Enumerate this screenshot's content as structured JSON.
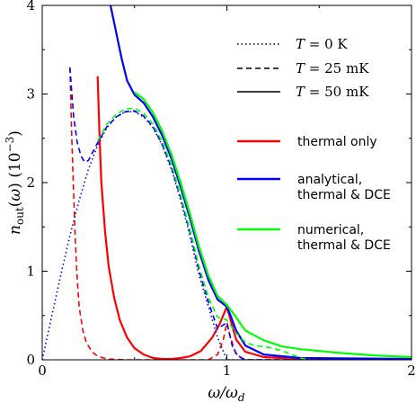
{
  "chart_data": {
    "type": "line",
    "title": "",
    "xlabel": "ω/ω_d",
    "ylabel": "n_out(ω)   (10⁻³)",
    "xlim": [
      0,
      2
    ],
    "ylim": [
      0,
      4
    ],
    "x_ticks": [
      "0",
      "1",
      "2"
    ],
    "y_ticks": [
      "0",
      "1",
      "2",
      "3",
      "4"
    ],
    "grid": false,
    "legend_position": "top-right",
    "legend": {
      "linestyles": [
        {
          "style": "dotted",
          "label": "T = 0 K"
        },
        {
          "style": "dashed",
          "label": "T = 25 mK"
        },
        {
          "style": "solid",
          "label": "T = 50 mK"
        }
      ],
      "colors": [
        {
          "color": "#ff0000",
          "label": "thermal only"
        },
        {
          "color": "#0000ff",
          "label": "analytical, thermal & DCE"
        },
        {
          "color": "#00ff00",
          "label": "numerical, thermal & DCE"
        }
      ]
    },
    "series": [
      {
        "name": "thermal only, T = 25 mK",
        "color": "#ff0000",
        "style": "dashed",
        "points": [
          [
            0.15,
            3.3
          ],
          [
            0.16,
            2.5
          ],
          [
            0.17,
            1.9
          ],
          [
            0.18,
            1.3
          ],
          [
            0.19,
            0.9
          ],
          [
            0.2,
            0.6
          ],
          [
            0.22,
            0.33
          ],
          [
            0.24,
            0.19
          ],
          [
            0.27,
            0.09
          ],
          [
            0.3,
            0.04
          ],
          [
            0.35,
            0.01
          ],
          [
            0.45,
            0.0
          ],
          [
            0.9,
            0.0
          ],
          [
            0.95,
            0.06
          ],
          [
            0.98,
            0.22
          ],
          [
            1.0,
            0.42
          ],
          [
            1.02,
            0.25
          ],
          [
            1.05,
            0.06
          ],
          [
            1.1,
            0.0
          ],
          [
            2.0,
            0.0
          ]
        ]
      },
      {
        "name": "thermal only, T = 50 mK",
        "color": "#ff0000",
        "style": "solid",
        "points": [
          [
            0.3,
            3.2
          ],
          [
            0.31,
            2.55
          ],
          [
            0.32,
            2.0
          ],
          [
            0.34,
            1.45
          ],
          [
            0.36,
            1.05
          ],
          [
            0.39,
            0.7
          ],
          [
            0.42,
            0.45
          ],
          [
            0.46,
            0.25
          ],
          [
            0.5,
            0.13
          ],
          [
            0.55,
            0.06
          ],
          [
            0.6,
            0.02
          ],
          [
            0.65,
            0.01
          ],
          [
            0.7,
            0.01
          ],
          [
            0.75,
            0.02
          ],
          [
            0.8,
            0.04
          ],
          [
            0.86,
            0.1
          ],
          [
            0.92,
            0.25
          ],
          [
            0.96,
            0.4
          ],
          [
            1.0,
            0.6
          ],
          [
            1.02,
            0.45
          ],
          [
            1.05,
            0.23
          ],
          [
            1.1,
            0.09
          ],
          [
            1.2,
            0.03
          ],
          [
            1.4,
            0.01
          ],
          [
            2.0,
            0.0
          ]
        ]
      },
      {
        "name": "analytical, thermal & DCE, T = 0 K",
        "color": "#0000ff",
        "style": "dotted",
        "points": [
          [
            0.0,
            0.0
          ],
          [
            0.05,
            0.48
          ],
          [
            0.1,
            0.95
          ],
          [
            0.15,
            1.4
          ],
          [
            0.2,
            1.8
          ],
          [
            0.25,
            2.15
          ],
          [
            0.3,
            2.42
          ],
          [
            0.35,
            2.62
          ],
          [
            0.4,
            2.74
          ],
          [
            0.45,
            2.8
          ],
          [
            0.5,
            2.8
          ],
          [
            0.55,
            2.74
          ],
          [
            0.6,
            2.62
          ],
          [
            0.65,
            2.42
          ],
          [
            0.7,
            2.15
          ],
          [
            0.75,
            1.8
          ],
          [
            0.8,
            1.4
          ],
          [
            0.85,
            0.95
          ],
          [
            0.9,
            0.6
          ],
          [
            0.95,
            0.25
          ],
          [
            1.0,
            0.0
          ],
          [
            2.0,
            0.0
          ]
        ]
      },
      {
        "name": "analytical, thermal & DCE, T = 25 mK",
        "color": "#0000ff",
        "style": "dashed",
        "points": [
          [
            0.15,
            3.3
          ],
          [
            0.17,
            2.75
          ],
          [
            0.19,
            2.45
          ],
          [
            0.21,
            2.3
          ],
          [
            0.23,
            2.23
          ],
          [
            0.25,
            2.25
          ],
          [
            0.3,
            2.45
          ],
          [
            0.35,
            2.63
          ],
          [
            0.4,
            2.74
          ],
          [
            0.45,
            2.8
          ],
          [
            0.5,
            2.81
          ],
          [
            0.55,
            2.75
          ],
          [
            0.6,
            2.63
          ],
          [
            0.65,
            2.43
          ],
          [
            0.7,
            2.17
          ],
          [
            0.75,
            1.83
          ],
          [
            0.8,
            1.44
          ],
          [
            0.85,
            1.0
          ],
          [
            0.9,
            0.65
          ],
          [
            0.95,
            0.35
          ],
          [
            1.0,
            0.42
          ],
          [
            1.03,
            0.15
          ],
          [
            1.06,
            0.04
          ],
          [
            1.1,
            0.0
          ],
          [
            2.0,
            0.0
          ]
        ]
      },
      {
        "name": "analytical, thermal & DCE, T = 50 mK",
        "color": "#0000ff",
        "style": "solid",
        "points": [
          [
            0.37,
            4.0
          ],
          [
            0.4,
            3.7
          ],
          [
            0.43,
            3.4
          ],
          [
            0.46,
            3.15
          ],
          [
            0.5,
            2.99
          ],
          [
            0.55,
            2.9
          ],
          [
            0.6,
            2.74
          ],
          [
            0.65,
            2.53
          ],
          [
            0.7,
            2.27
          ],
          [
            0.75,
            1.95
          ],
          [
            0.8,
            1.6
          ],
          [
            0.85,
            1.22
          ],
          [
            0.9,
            0.9
          ],
          [
            0.95,
            0.68
          ],
          [
            1.0,
            0.6
          ],
          [
            1.02,
            0.5
          ],
          [
            1.05,
            0.33
          ],
          [
            1.1,
            0.16
          ],
          [
            1.2,
            0.06
          ],
          [
            1.4,
            0.02
          ],
          [
            2.0,
            0.01
          ]
        ]
      },
      {
        "name": "numerical, thermal & DCE, T = 25 mK",
        "color": "#00ff00",
        "style": "dashed",
        "points": [
          [
            0.3,
            2.47
          ],
          [
            0.35,
            2.66
          ],
          [
            0.4,
            2.77
          ],
          [
            0.45,
            2.83
          ],
          [
            0.5,
            2.84
          ],
          [
            0.55,
            2.78
          ],
          [
            0.6,
            2.66
          ],
          [
            0.65,
            2.46
          ],
          [
            0.7,
            2.2
          ],
          [
            0.75,
            1.86
          ],
          [
            0.8,
            1.47
          ],
          [
            0.85,
            1.05
          ],
          [
            0.9,
            0.7
          ],
          [
            0.95,
            0.48
          ],
          [
            1.0,
            0.45
          ],
          [
            1.05,
            0.3
          ],
          [
            1.1,
            0.2
          ],
          [
            1.15,
            0.16
          ],
          [
            1.2,
            0.15
          ],
          [
            1.25,
            0.13
          ],
          [
            1.3,
            0.1
          ],
          [
            1.35,
            0.06
          ],
          [
            1.4,
            0.02
          ],
          [
            1.45,
            0.0
          ]
        ]
      },
      {
        "name": "numerical, thermal & DCE, T = 50 mK",
        "color": "#00ff00",
        "style": "solid",
        "points": [
          [
            0.5,
            3.02
          ],
          [
            0.55,
            2.94
          ],
          [
            0.6,
            2.79
          ],
          [
            0.65,
            2.58
          ],
          [
            0.7,
            2.32
          ],
          [
            0.75,
            2.0
          ],
          [
            0.8,
            1.65
          ],
          [
            0.85,
            1.27
          ],
          [
            0.9,
            0.95
          ],
          [
            0.95,
            0.72
          ],
          [
            1.0,
            0.62
          ],
          [
            1.05,
            0.48
          ],
          [
            1.1,
            0.33
          ],
          [
            1.2,
            0.22
          ],
          [
            1.3,
            0.15
          ],
          [
            1.4,
            0.12
          ],
          [
            1.6,
            0.08
          ],
          [
            1.8,
            0.05
          ],
          [
            2.0,
            0.03
          ]
        ]
      }
    ]
  }
}
